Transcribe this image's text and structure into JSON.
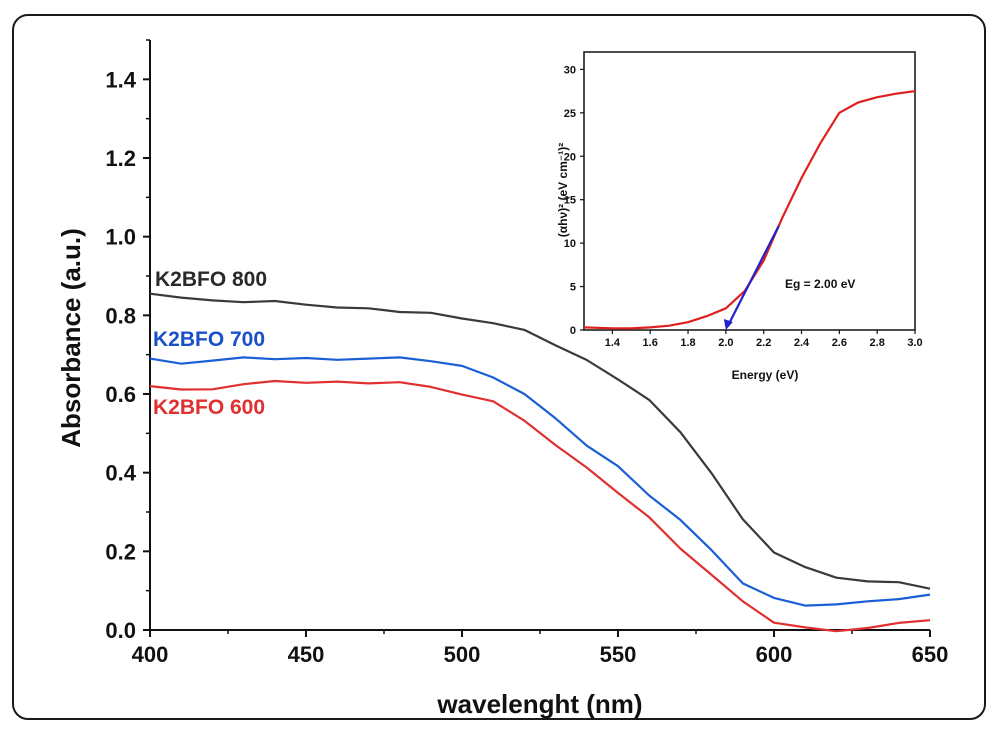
{
  "chart_data": [
    {
      "type": "line",
      "title": "",
      "xlabel": "wavelenght (nm)",
      "ylabel": "Absorbance (a.u.)",
      "xlim": [
        400,
        650
      ],
      "ylim": [
        0.0,
        1.5
      ],
      "xticks": [
        "400",
        "450",
        "500",
        "550",
        "600",
        "650"
      ],
      "yticks": [
        "0.0",
        "0.2",
        "0.4",
        "0.6",
        "0.8",
        "1.0",
        "1.2",
        "1.4"
      ],
      "grid": false,
      "series": [
        {
          "name": "K2BFO 800",
          "color": "#3a3a3a",
          "x": [
            400,
            410,
            420,
            430,
            440,
            450,
            460,
            470,
            480,
            490,
            500,
            510,
            520,
            530,
            540,
            550,
            560,
            570,
            580,
            590,
            600,
            610,
            620,
            630,
            640,
            650
          ],
          "y": [
            0.855,
            0.845,
            0.835,
            0.835,
            0.835,
            0.83,
            0.82,
            0.815,
            0.81,
            0.805,
            0.795,
            0.78,
            0.76,
            0.725,
            0.685,
            0.64,
            0.585,
            0.5,
            0.4,
            0.28,
            0.2,
            0.16,
            0.13,
            0.125,
            0.12,
            0.105
          ]
        },
        {
          "name": "K2BFO 700",
          "color": "#1a5fd6",
          "x": [
            400,
            410,
            420,
            430,
            440,
            450,
            460,
            470,
            480,
            490,
            500,
            510,
            520,
            530,
            540,
            550,
            560,
            570,
            580,
            590,
            600,
            610,
            620,
            630,
            640,
            650
          ],
          "y": [
            0.69,
            0.68,
            0.685,
            0.69,
            0.69,
            0.69,
            0.69,
            0.69,
            0.69,
            0.685,
            0.67,
            0.645,
            0.6,
            0.535,
            0.47,
            0.415,
            0.345,
            0.28,
            0.2,
            0.12,
            0.08,
            0.065,
            0.065,
            0.07,
            0.08,
            0.09
          ]
        },
        {
          "name": "K2BFO 600",
          "color": "#e03030",
          "x": [
            400,
            410,
            420,
            430,
            440,
            450,
            460,
            470,
            480,
            490,
            500,
            510,
            520,
            530,
            540,
            550,
            560,
            570,
            580,
            590,
            600,
            610,
            620,
            630,
            640,
            650
          ],
          "y": [
            0.62,
            0.61,
            0.615,
            0.625,
            0.63,
            0.63,
            0.63,
            0.63,
            0.63,
            0.615,
            0.6,
            0.58,
            0.535,
            0.47,
            0.41,
            0.35,
            0.285,
            0.21,
            0.14,
            0.07,
            0.02,
            0.005,
            0.0,
            0.005,
            0.015,
            0.025
          ]
        }
      ],
      "annotations": [
        "K2BFO 800",
        "K2BFO 700",
        "K2BFO 600"
      ]
    },
    {
      "type": "line",
      "title": "",
      "xlabel": "Energy (eV)",
      "ylabel": "(αhν)² (eV cm⁻¹)²",
      "xlim": [
        1.25,
        3.0
      ],
      "ylim": [
        0,
        32
      ],
      "xticks": [
        "1.4",
        "1.6",
        "1.8",
        "2.0",
        "2.2",
        "2.4",
        "2.6",
        "2.8",
        "3.0"
      ],
      "yticks": [
        "0",
        "5",
        "10",
        "15",
        "20",
        "25",
        "30"
      ],
      "series": [
        {
          "name": "",
          "color": "#e02020",
          "x": [
            1.25,
            1.4,
            1.5,
            1.6,
            1.7,
            1.8,
            1.9,
            2.0,
            2.1,
            2.2,
            2.3,
            2.4,
            2.5,
            2.6,
            2.7,
            2.8,
            2.9,
            3.0
          ],
          "y": [
            0.3,
            0.2,
            0.2,
            0.3,
            0.5,
            0.9,
            1.6,
            2.5,
            4.5,
            8.0,
            13.0,
            17.5,
            21.5,
            25.0,
            26.2,
            26.8,
            27.2,
            27.5
          ]
        }
      ],
      "fit_line": {
        "color": "#2222cc",
        "x": [
          2.0,
          2.28
        ],
        "y": [
          0,
          12
        ]
      },
      "annotation": "Eg = 2.00 eV"
    }
  ]
}
